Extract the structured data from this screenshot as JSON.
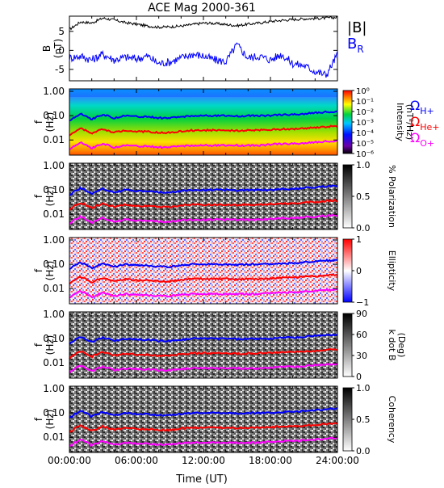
{
  "chart_data": [
    {
      "type": "line",
      "title": "ACE Mag 2000-361",
      "ylabel": "B",
      "yunit": "(nT)",
      "ylim": [
        -8,
        9
      ],
      "yticks": [
        "5",
        "0",
        "-5"
      ],
      "series": [
        {
          "name": "|B|",
          "color": "#000000",
          "x": [
            0,
            1,
            2,
            3,
            4,
            5,
            6,
            7,
            8,
            9,
            10,
            11,
            12,
            13,
            14,
            15,
            16,
            17,
            18,
            19,
            20,
            21,
            22,
            23,
            24
          ],
          "values": [
            5.5,
            7.5,
            7.2,
            8.5,
            8.0,
            7.3,
            6.9,
            6.4,
            6.1,
            6.2,
            6.4,
            6.8,
            7.2,
            7.1,
            6.8,
            6.5,
            6.9,
            7.2,
            7.6,
            7.9,
            8.1,
            8.3,
            8.4,
            8.5,
            8.7
          ]
        },
        {
          "name": "B",
          "subscript": "R",
          "color": "#0000ff",
          "x": [
            0,
            1,
            2,
            3,
            4,
            5,
            6,
            7,
            8,
            9,
            10,
            11,
            12,
            13,
            14,
            15,
            16,
            17,
            18,
            19,
            20,
            21,
            22,
            23,
            24
          ],
          "values": [
            -2.0,
            -1.5,
            -2.5,
            -1.0,
            -2.5,
            -1.8,
            -2.2,
            -1.5,
            -3.5,
            -3.0,
            -2.0,
            -1.0,
            -1.5,
            -2.5,
            -3.0,
            1.5,
            -2.0,
            -1.5,
            -2.5,
            -1.0,
            -3.5,
            -4.0,
            -5.5,
            -6.5,
            -1.0
          ]
        }
      ]
    },
    {
      "type": "heatmap",
      "ylabel": "f",
      "yunit": "(Hz)",
      "yticks": [
        "1.00",
        "0.10",
        "0.01"
      ],
      "colorbar": {
        "label": "Intensity",
        "unit": "(nT²/Hz)",
        "ticks": [
          "10⁰",
          "10⁻¹",
          "10⁻²",
          "10⁻³",
          "10⁻⁴",
          "10⁻⁵",
          "10⁻⁶"
        ]
      },
      "gyrofrequencies": [
        {
          "label": "Ω",
          "subscript": "H+",
          "color": "#0000ff"
        },
        {
          "label": "Ω",
          "subscript": "He+",
          "color": "#ff0000"
        },
        {
          "label": "Ω",
          "subscript": "O+",
          "color": "#ff00ff"
        }
      ]
    },
    {
      "type": "heatmap",
      "ylabel": "f",
      "yunit": "(Hz)",
      "yticks": [
        "1.00",
        "0.10",
        "0.01"
      ],
      "colorbar": {
        "label": "% Polarization",
        "ticks": [
          "1.0",
          "0.5",
          "0.0"
        ]
      }
    },
    {
      "type": "heatmap",
      "ylabel": "f",
      "yunit": "(Hz)",
      "yticks": [
        "1.00",
        "0.10",
        "0.01"
      ],
      "colorbar": {
        "label": "Ellipticity",
        "ticks": [
          "1",
          "0",
          "−1"
        ]
      }
    },
    {
      "type": "heatmap",
      "ylabel": "f",
      "yunit": "(Hz)",
      "yticks": [
        "1.00",
        "0.10",
        "0.01"
      ],
      "colorbar": {
        "label": "k dot B",
        "unit": "(Deg)",
        "ticks": [
          "90",
          "60",
          "30",
          "0"
        ]
      }
    },
    {
      "type": "heatmap",
      "ylabel": "f",
      "yunit": "(Hz)",
      "yticks": [
        "1.00",
        "0.10",
        "0.01"
      ],
      "colorbar": {
        "label": "Coherency",
        "ticks": [
          "1.0",
          "0.5",
          "0.0"
        ]
      }
    }
  ],
  "x_axis": {
    "label": "Time (UT)",
    "ticks": [
      "00:00:00",
      "06:00:00",
      "12:00:00",
      "18:00:00",
      "24:00:00"
    ],
    "xlim_hours": [
      0,
      24
    ]
  },
  "gyro_curves": {
    "x": [
      0,
      1,
      2,
      3,
      4,
      5,
      6,
      7,
      8,
      9,
      10,
      11,
      12,
      13,
      14,
      15,
      16,
      17,
      18,
      19,
      20,
      21,
      22,
      23,
      24
    ],
    "H+": [
      0.06,
      0.12,
      0.07,
      0.11,
      0.08,
      0.1,
      0.09,
      0.09,
      0.08,
      0.08,
      0.09,
      0.1,
      0.1,
      0.1,
      0.1,
      0.095,
      0.1,
      0.1,
      0.1,
      0.11,
      0.11,
      0.12,
      0.13,
      0.14,
      0.15
    ],
    "He+": [
      0.015,
      0.03,
      0.018,
      0.028,
      0.02,
      0.025,
      0.022,
      0.022,
      0.02,
      0.02,
      0.023,
      0.025,
      0.025,
      0.025,
      0.025,
      0.024,
      0.025,
      0.025,
      0.026,
      0.028,
      0.028,
      0.03,
      0.032,
      0.035,
      0.037
    ],
    "O+": [
      0.004,
      0.008,
      0.0045,
      0.007,
      0.005,
      0.006,
      0.0055,
      0.0055,
      0.005,
      0.005,
      0.0057,
      0.006,
      0.006,
      0.006,
      0.006,
      0.006,
      0.006,
      0.006,
      0.0065,
      0.007,
      0.007,
      0.0075,
      0.008,
      0.0087,
      0.0093
    ]
  },
  "colors": {
    "h_plus": "#0000ff",
    "he_plus": "#ff0000",
    "o_plus": "#ff00ff"
  }
}
